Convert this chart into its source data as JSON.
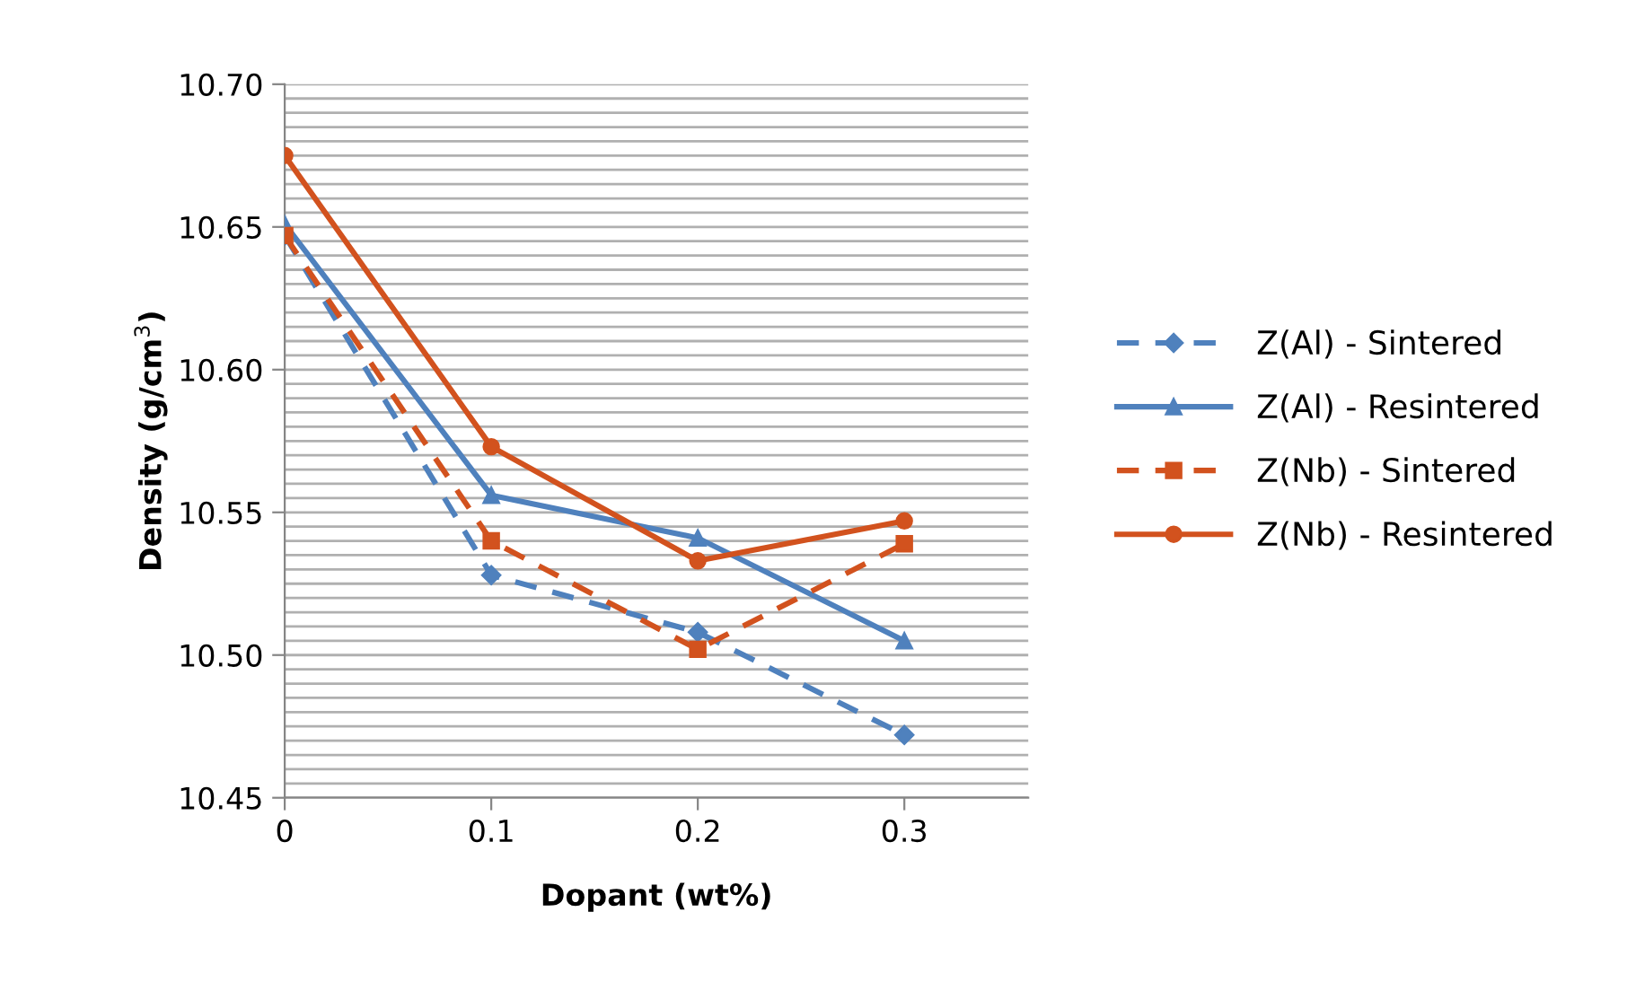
{
  "chart_data": {
    "type": "line",
    "xlabel": "Dopant (wt%)",
    "ylabel": "Density (g/cm$^{3}$)",
    "x": [
      0,
      0.1,
      0.2,
      0.3
    ],
    "series": [
      {
        "name": "Z(Al) - Sintered",
        "color": "#4f81bd",
        "marker": "diamond",
        "line_style": "dashed",
        "values": [
          10.647,
          10.528,
          10.508,
          10.472
        ]
      },
      {
        "name": "Z(Al) - Resintered",
        "color": "#4f81bd",
        "marker": "triangle",
        "line_style": "solid",
        "values": [
          10.651,
          10.556,
          10.541,
          10.505
        ]
      },
      {
        "name": "Z(Nb) - Sintered",
        "color": "#d2521e",
        "marker": "square",
        "line_style": "dashed",
        "values": [
          10.647,
          10.54,
          10.502,
          10.539
        ]
      },
      {
        "name": "Z(Nb) - Resintered",
        "color": "#d2521e",
        "marker": "circle",
        "line_style": "solid",
        "values": [
          10.675,
          10.573,
          10.533,
          10.547
        ]
      }
    ],
    "xlim": [
      0,
      0.36
    ],
    "xticks": [
      0,
      0.1,
      0.2,
      0.3
    ],
    "ylim": [
      10.45,
      10.7
    ],
    "yticks": [
      {
        "value": 10.45,
        "label": "10.45"
      },
      {
        "value": 10.455,
        "label": null
      },
      {
        "value": 10.46,
        "label": null
      },
      {
        "value": 10.465,
        "label": null
      },
      {
        "value": 10.47,
        "label": null
      },
      {
        "value": 10.475,
        "label": null
      },
      {
        "value": 10.48,
        "label": null
      },
      {
        "value": 10.485,
        "label": null
      },
      {
        "value": 10.49,
        "label": null
      },
      {
        "value": 10.495,
        "label": null
      },
      {
        "value": 10.5,
        "label": "10.50"
      },
      {
        "value": 10.505,
        "label": null
      },
      {
        "value": 10.51,
        "label": null
      },
      {
        "value": 10.515,
        "label": null
      },
      {
        "value": 10.52,
        "label": null
      },
      {
        "value": 10.525,
        "label": null
      },
      {
        "value": 10.53,
        "label": null
      },
      {
        "value": 10.535,
        "label": null
      },
      {
        "value": 10.54,
        "label": null
      },
      {
        "value": 10.545,
        "label": null
      },
      {
        "value": 10.55,
        "label": "10.55"
      },
      {
        "value": 10.555,
        "label": null
      },
      {
        "value": 10.56,
        "label": null
      },
      {
        "value": 10.565,
        "label": null
      },
      {
        "value": 10.57,
        "label": null
      },
      {
        "value": 10.575,
        "label": null
      },
      {
        "value": 10.58,
        "label": null
      },
      {
        "value": 10.585,
        "label": null
      },
      {
        "value": 10.59,
        "label": null
      },
      {
        "value": 10.595,
        "label": null
      },
      {
        "value": 10.6,
        "label": "10.60"
      },
      {
        "value": 10.605,
        "label": null
      },
      {
        "value": 10.61,
        "label": null
      },
      {
        "value": 10.615,
        "label": null
      },
      {
        "value": 10.62,
        "label": null
      },
      {
        "value": 10.625,
        "label": null
      },
      {
        "value": 10.63,
        "label": null
      },
      {
        "value": 10.635,
        "label": null
      },
      {
        "value": 10.64,
        "label": null
      },
      {
        "value": 10.645,
        "label": null
      },
      {
        "value": 10.65,
        "label": "10.65"
      },
      {
        "value": 10.655,
        "label": null
      },
      {
        "value": 10.66,
        "label": null
      },
      {
        "value": 10.665,
        "label": null
      },
      {
        "value": 10.67,
        "label": null
      },
      {
        "value": 10.675,
        "label": null
      },
      {
        "value": 10.68,
        "label": null
      },
      {
        "value": 10.685,
        "label": null
      },
      {
        "value": 10.69,
        "label": null
      },
      {
        "value": 10.695,
        "label": null
      },
      {
        "value": 10.7,
        "label": "10.70"
      }
    ],
    "grid": "y",
    "legend": "right"
  }
}
